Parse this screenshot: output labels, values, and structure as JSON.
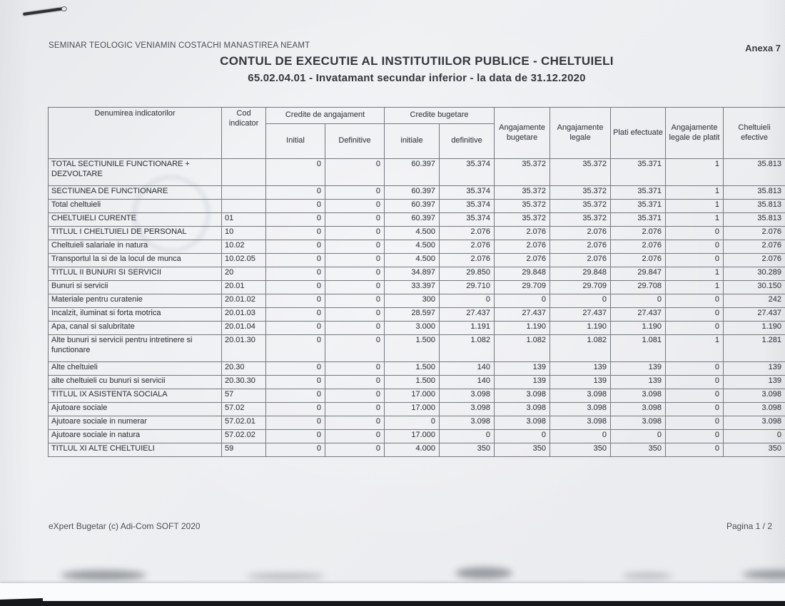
{
  "page": {
    "organization": "SEMINAR TEOLOGIC VENIAMIN COSTACHI MANASTIREA NEAMT",
    "annex": "Anexa 7",
    "title": "CONTUL DE EXECUTIE AL INSTITUTIILOR PUBLICE - CHELTUIELI",
    "subtitle": "65.02.04.01 - Invatamant secundar inferior - la data de 31.12.2020",
    "footer_left": "eXpert Bugetar (c) Adi-Com SOFT 2020",
    "footer_right": "Pagina 1 / 2"
  },
  "colors": {
    "paper": "#eef0f2",
    "ink": "#3d4248",
    "table_border": "#74797f",
    "bottom_bar": "#17181b"
  },
  "table": {
    "headers": {
      "denumire": "Denumirea indicatorilor",
      "cod_indicator": "Cod indicator",
      "group_credite_angajament": "Credite de angajament",
      "group_credite_bugetare": "Credite bugetare",
      "initial": "Initial",
      "definitive": "Definitive",
      "initiale": "initiale",
      "definitive_b": "definitive",
      "angajamente_bugetare": "Angajamente bugetare",
      "angajamente_legale": "Angajamente legale",
      "plati_efectuate": "Plati efectuate",
      "angajamente_legale_platit": "Angajamente legale de platit",
      "cheltuieli_efective": "Cheltuieli efective"
    },
    "rows": [
      {
        "label": "TOTAL SECTIUNILE FUNCTIONARE + DEZVOLTARE",
        "code": "",
        "tall": true,
        "cells": [
          "0",
          "0",
          "60.397",
          "35.374",
          "35.372",
          "35.372",
          "35.371",
          "1",
          "35.813"
        ]
      },
      {
        "label": "SECTIUNEA DE FUNCTIONARE",
        "code": "",
        "tall": false,
        "cells": [
          "0",
          "0",
          "60.397",
          "35.374",
          "35.372",
          "35.372",
          "35.371",
          "1",
          "35.813"
        ]
      },
      {
        "label": "Total cheltuieli",
        "code": "",
        "tall": false,
        "cells": [
          "0",
          "0",
          "60.397",
          "35.374",
          "35.372",
          "35.372",
          "35.371",
          "1",
          "35.813"
        ]
      },
      {
        "label": "CHELTUIELI CURENTE",
        "code": "01",
        "tall": false,
        "cells": [
          "0",
          "0",
          "60.397",
          "35.374",
          "35.372",
          "35.372",
          "35.371",
          "1",
          "35.813"
        ]
      },
      {
        "label": "TITLUL I CHELTUIELI DE PERSONAL",
        "code": "10",
        "tall": false,
        "cells": [
          "0",
          "0",
          "4.500",
          "2.076",
          "2.076",
          "2.076",
          "2.076",
          "0",
          "2.076"
        ]
      },
      {
        "label": "Cheltuieli salariale in natura",
        "code": "10.02",
        "tall": false,
        "cells": [
          "0",
          "0",
          "4.500",
          "2.076",
          "2.076",
          "2.076",
          "2.076",
          "0",
          "2.076"
        ]
      },
      {
        "label": "Transportul la si de la locul de munca",
        "code": "10.02.05",
        "tall": false,
        "cells": [
          "0",
          "0",
          "4.500",
          "2.076",
          "2.076",
          "2.076",
          "2.076",
          "0",
          "2.076"
        ]
      },
      {
        "label": "TITLUL II BUNURI SI SERVICII",
        "code": "20",
        "tall": false,
        "cells": [
          "0",
          "0",
          "34.897",
          "29.850",
          "29.848",
          "29.848",
          "29.847",
          "1",
          "30.289"
        ]
      },
      {
        "label": "Bunuri si servicii",
        "code": "20.01",
        "tall": false,
        "cells": [
          "0",
          "0",
          "33.397",
          "29.710",
          "29.709",
          "29.709",
          "29.708",
          "1",
          "30.150"
        ]
      },
      {
        "label": "Materiale pentru curatenie",
        "code": "20.01.02",
        "tall": false,
        "cells": [
          "0",
          "0",
          "300",
          "0",
          "0",
          "0",
          "0",
          "0",
          "242"
        ]
      },
      {
        "label": "Incalzit, iluminat si forta motrica",
        "code": "20.01.03",
        "tall": false,
        "cells": [
          "0",
          "0",
          "28.597",
          "27.437",
          "27.437",
          "27.437",
          "27.437",
          "0",
          "27.437"
        ]
      },
      {
        "label": "Apa, canal si salubritate",
        "code": "20.01.04",
        "tall": false,
        "cells": [
          "0",
          "0",
          "3.000",
          "1.191",
          "1.190",
          "1.190",
          "1.190",
          "0",
          "1.190"
        ]
      },
      {
        "label": "Alte bunuri si servicii pentru intretinere si functionare",
        "code": "20.01.30",
        "tall": true,
        "cells": [
          "0",
          "0",
          "1.500",
          "1.082",
          "1.082",
          "1.082",
          "1.081",
          "1",
          "1.281"
        ]
      },
      {
        "label": "Alte cheltuieli",
        "code": "20.30",
        "tall": false,
        "cells": [
          "0",
          "0",
          "1.500",
          "140",
          "139",
          "139",
          "139",
          "0",
          "139"
        ]
      },
      {
        "label": "alte cheltuieli cu bunuri si servicii",
        "code": "20.30.30",
        "tall": false,
        "cells": [
          "0",
          "0",
          "1.500",
          "140",
          "139",
          "139",
          "139",
          "0",
          "139"
        ]
      },
      {
        "label": "TITLUL IX ASISTENTA SOCIALA",
        "code": "57",
        "tall": false,
        "cells": [
          "0",
          "0",
          "17.000",
          "3.098",
          "3.098",
          "3.098",
          "3.098",
          "0",
          "3.098"
        ]
      },
      {
        "label": "Ajutoare sociale",
        "code": "57.02",
        "tall": false,
        "cells": [
          "0",
          "0",
          "17.000",
          "3.098",
          "3.098",
          "3.098",
          "3.098",
          "0",
          "3.098"
        ]
      },
      {
        "label": "Ajutoare sociale in numerar",
        "code": "57.02.01",
        "tall": false,
        "cells": [
          "0",
          "0",
          "0",
          "3.098",
          "3.098",
          "3.098",
          "3.098",
          "0",
          "3.098"
        ]
      },
      {
        "label": "Ajutoare sociale in natura",
        "code": "57.02.02",
        "tall": false,
        "cells": [
          "0",
          "0",
          "17.000",
          "0",
          "0",
          "0",
          "0",
          "0",
          "0"
        ]
      },
      {
        "label": "TITLUL XI ALTE CHELTUIELI",
        "code": "59",
        "tall": false,
        "cells": [
          "0",
          "0",
          "4.000",
          "350",
          "350",
          "350",
          "350",
          "0",
          "350"
        ]
      }
    ]
  }
}
